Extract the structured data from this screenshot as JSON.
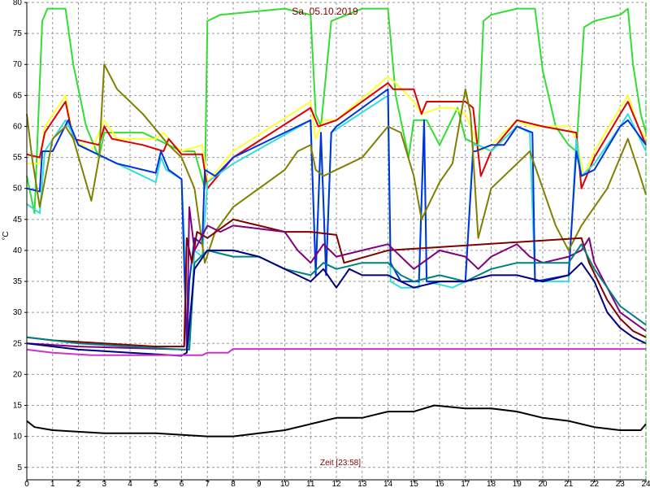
{
  "chart_data": {
    "type": "line",
    "title": "Sa, 05.10.2019",
    "x_label": "Zeit [23:58]",
    "y_label": "°C",
    "xlim": [
      0,
      24
    ],
    "ylim": [
      3,
      80
    ],
    "xticks": [
      0,
      1,
      2,
      3,
      4,
      5,
      6,
      7,
      8,
      9,
      10,
      11,
      12,
      13,
      14,
      15,
      16,
      17,
      18,
      19,
      20,
      21,
      22,
      23,
      24
    ],
    "yticks": [
      5,
      10,
      15,
      20,
      25,
      30,
      35,
      40,
      45,
      50,
      55,
      60,
      65,
      70,
      75,
      80
    ],
    "grid": true,
    "series": [
      {
        "color": "#33dd33",
        "x": [
          0,
          0.3,
          0.6,
          0.8,
          1.5,
          1.8,
          2.3,
          2.8,
          3,
          4.5,
          5,
          6,
          6.5,
          6.9,
          7,
          7.5,
          10,
          11,
          11.2,
          11.4,
          11.8,
          13,
          14,
          14.3,
          14.8,
          15,
          15.5,
          16,
          16.7,
          17,
          17.5,
          17.7,
          18,
          19,
          19.7,
          20,
          20.5,
          21,
          21.3,
          21.6,
          22,
          23,
          23.3,
          23.5,
          23.8,
          24
        ],
        "values": [
          52,
          46,
          77,
          79,
          79,
          70,
          60,
          55,
          59,
          59,
          58,
          56,
          56,
          50,
          77,
          78,
          79,
          78,
          62,
          60,
          77,
          79,
          79,
          65,
          55,
          61,
          61,
          57,
          63,
          58,
          57,
          77,
          78,
          79,
          79,
          69,
          60,
          57,
          56,
          76,
          77,
          78,
          79,
          70,
          62,
          59
        ]
      },
      {
        "color": "#ffff33",
        "x": [
          0,
          0.5,
          0.7,
          1.5,
          1.8,
          2.5,
          3,
          3.5,
          4,
          5,
          5.3,
          5.7,
          6,
          6.8,
          7,
          8,
          11,
          11.2,
          11.5,
          12,
          14,
          14.3,
          15,
          15.3,
          16,
          16.5,
          17,
          17.3,
          17.6,
          18,
          19,
          19.5,
          20,
          21,
          21.3,
          21.6,
          22,
          23,
          23.3,
          23.7,
          24
        ],
        "values": [
          54,
          54,
          60,
          65,
          58,
          56,
          61,
          58,
          58,
          58,
          59,
          57,
          56,
          57,
          51,
          56,
          64,
          58,
          61,
          61,
          68,
          67,
          64,
          62,
          63,
          63,
          62,
          59,
          56,
          57,
          61,
          60,
          60,
          60,
          58,
          52,
          56,
          63,
          65,
          60,
          58
        ]
      },
      {
        "color": "#dd0000",
        "x": [
          0,
          0.5,
          0.7,
          1.5,
          1.8,
          2.8,
          3,
          3.3,
          4.5,
          5.3,
          5.5,
          6,
          6.8,
          7,
          8,
          11,
          11.3,
          12,
          14,
          14.2,
          15,
          15.3,
          15.5,
          17,
          17.3,
          17.6,
          18,
          19,
          20,
          21.3,
          21.5,
          22,
          23,
          23.3,
          24
        ],
        "values": [
          55.5,
          55,
          59,
          64,
          58,
          57,
          60,
          58,
          57,
          56,
          58,
          55.5,
          55.5,
          50,
          55,
          63,
          60,
          61,
          67,
          66,
          66,
          62,
          64,
          64,
          63,
          52,
          56,
          61,
          60,
          59,
          50,
          55,
          62,
          64,
          57
        ]
      },
      {
        "color": "#33dddd",
        "x": [
          0,
          0.5,
          0.7,
          1.5,
          2,
          3,
          3.5,
          5,
          5.2,
          5.4,
          6,
          6.3,
          6.5,
          6.8,
          7,
          8,
          11,
          11.2,
          11.4,
          11.6,
          11.8,
          14,
          14.1,
          14.5,
          15.2,
          15.4,
          15.5,
          16.5,
          17,
          17.3,
          17.5,
          18,
          19,
          19.5,
          19.7,
          21,
          21.3,
          21.5,
          22,
          23,
          23.3,
          24
        ],
        "values": [
          47.5,
          46,
          56,
          61,
          57,
          55,
          54,
          51,
          55,
          53,
          51.5,
          24,
          40,
          39,
          51,
          54,
          61,
          37,
          58,
          37,
          59,
          65,
          35,
          34,
          34,
          60,
          35,
          34,
          35,
          57,
          57,
          56,
          60,
          59,
          35,
          35,
          58,
          52,
          54,
          60,
          62,
          56
        ]
      },
      {
        "color": "#0033dd",
        "x": [
          0,
          0.5,
          0.6,
          1,
          1.6,
          2,
          3,
          3.5,
          5,
          5.2,
          5.5,
          6,
          6.2,
          6.3,
          6.5,
          6.8,
          6.9,
          7.3,
          8,
          11,
          11.2,
          11.4,
          11.6,
          11.8,
          12,
          14,
          14.1,
          14.5,
          15.2,
          15.4,
          15.5,
          17,
          17.3,
          17.4,
          18,
          18.5,
          19,
          19.6,
          19.7,
          21,
          21.3,
          21.5,
          22,
          23,
          23.3,
          24
        ],
        "values": [
          50,
          49.5,
          56,
          56,
          61,
          57,
          55,
          54,
          52.5,
          56,
          53,
          51.5,
          24,
          35,
          42,
          41,
          53,
          52,
          55,
          61,
          36,
          59,
          36,
          59,
          60,
          66,
          38,
          35,
          35,
          61,
          35,
          35,
          56,
          56,
          57,
          57,
          60,
          59,
          35,
          36,
          56,
          52,
          53,
          60,
          61,
          57
        ]
      },
      {
        "color": "#808000",
        "x": [
          0,
          0.2,
          0.5,
          1,
          1.5,
          1.8,
          2.5,
          2.8,
          3,
          3.5,
          4.5,
          5.5,
          6,
          6.5,
          6.9,
          7.3,
          8,
          9,
          10,
          10.5,
          11,
          11.2,
          11.5,
          12,
          13,
          14,
          14.5,
          15,
          15.3,
          16,
          16.5,
          17,
          17.2,
          17.5,
          18,
          19,
          19.5,
          20,
          20.5,
          21,
          21.5,
          22,
          22.5,
          23,
          23.3,
          23.7,
          24
        ],
        "values": [
          62,
          55,
          47,
          58,
          60,
          58,
          48,
          55,
          70,
          66,
          62,
          57,
          55,
          50,
          38,
          43,
          47,
          50,
          53,
          56,
          57,
          53,
          52,
          53,
          55,
          60,
          59,
          52,
          45,
          51,
          54,
          66,
          62,
          42,
          50,
          54,
          56,
          50,
          44,
          40,
          44,
          47,
          50,
          55,
          58,
          53,
          49
        ]
      },
      {
        "color": "#800000",
        "x": [
          0,
          1,
          3,
          5,
          6.1,
          6.2,
          6.4,
          6.6,
          7,
          8,
          9,
          10,
          11,
          12,
          12.3,
          14,
          21.5,
          21.8,
          22.5,
          23,
          23.5,
          24
        ],
        "values": [
          26,
          25.5,
          25,
          24.5,
          24.5,
          42,
          38,
          43,
          42,
          45,
          44,
          43,
          43,
          42.5,
          38,
          40,
          42,
          38,
          32,
          29,
          27,
          26
        ]
      },
      {
        "color": "#800080",
        "x": [
          0,
          2,
          6.2,
          6.3,
          6.5,
          7,
          7.5,
          8,
          9,
          10,
          10.5,
          11,
          11.5,
          12,
          13,
          14,
          14.5,
          15,
          16,
          17,
          17.5,
          18,
          19,
          19.5,
          20,
          21,
          21.5,
          21.8,
          22,
          23,
          24
        ],
        "values": [
          25,
          24.5,
          24,
          47,
          40,
          44,
          43,
          44,
          43.5,
          43,
          40,
          38,
          41,
          39,
          40,
          41,
          39,
          37,
          40,
          39,
          37,
          39,
          41,
          39,
          38,
          39,
          40,
          42,
          38,
          30,
          27
        ]
      },
      {
        "color": "#008080",
        "x": [
          0,
          2,
          6,
          6.3,
          6.5,
          7,
          8,
          9,
          10,
          11,
          11.5,
          12,
          13,
          14,
          14.5,
          15,
          16,
          17,
          18,
          19,
          20,
          21,
          21.5,
          22,
          23,
          24
        ],
        "values": [
          26,
          25,
          24,
          24,
          38,
          40,
          39,
          39,
          37,
          36,
          38,
          37,
          38,
          38,
          36,
          35,
          36,
          35,
          37,
          38,
          38,
          38,
          41,
          37,
          31,
          28
        ]
      },
      {
        "color": "#000080",
        "x": [
          0,
          2,
          4,
          6,
          6.2,
          6.5,
          7,
          8,
          9,
          10,
          11,
          11.5,
          12,
          12.5,
          13,
          14,
          15,
          16,
          17,
          18,
          19,
          20,
          21,
          21.5,
          22,
          22.5,
          23,
          23.5,
          24
        ],
        "values": [
          25,
          24,
          23.5,
          23,
          23.5,
          37,
          40,
          40,
          39,
          37,
          35,
          37,
          34,
          37,
          36,
          36,
          34,
          35,
          35,
          36,
          36,
          35,
          36,
          38,
          35,
          30,
          27.5,
          26,
          25
        ]
      },
      {
        "color": "#cc33cc",
        "x": [
          0,
          1,
          2.5,
          6.8,
          7,
          7.8,
          8,
          24
        ],
        "values": [
          24,
          23.5,
          23.1,
          23.1,
          23.5,
          23.5,
          24.1,
          24.1
        ]
      },
      {
        "color": "#000000",
        "x": [
          0,
          0.3,
          1,
          3,
          5,
          7,
          8,
          9,
          10,
          11,
          12,
          13,
          14,
          15,
          15.8,
          17,
          18,
          19,
          20,
          21,
          22,
          23,
          23.8,
          24
        ],
        "values": [
          12.5,
          11.5,
          11,
          10.5,
          10.5,
          10,
          10,
          10.5,
          11,
          12,
          13,
          13,
          14,
          14,
          15,
          14.5,
          14.5,
          14,
          13,
          12.5,
          11.5,
          11,
          11,
          12
        ]
      }
    ]
  }
}
